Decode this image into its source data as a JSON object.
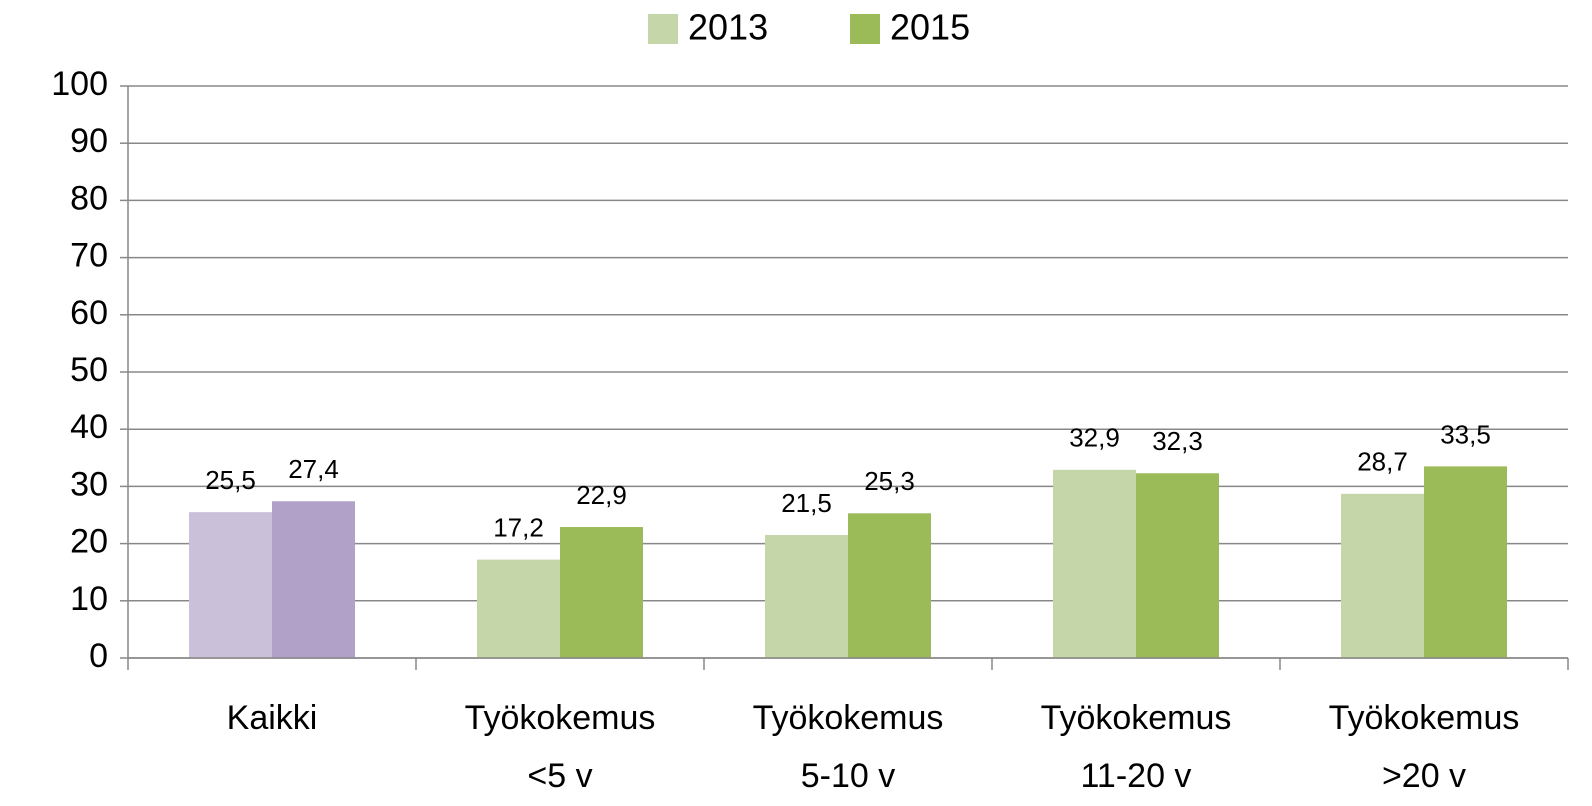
{
  "chart_data": {
    "type": "bar",
    "categories": [
      "Kaikki",
      "Työkokemus\n<5 v",
      "Työkokemus\n5-10 v",
      "Työkokemus\n11-20 v",
      "Työkokemus\n>20 v"
    ],
    "series": [
      {
        "name": "2013",
        "color": "#c5d6a8",
        "colors": [
          "#cbc0da",
          "#c5d6a8",
          "#c5d6a8",
          "#c5d6a8",
          "#c5d6a8"
        ],
        "values": [
          25.5,
          17.2,
          21.5,
          32.9,
          28.7
        ],
        "value_labels": [
          "25,5",
          "17,2",
          "21,5",
          "32,9",
          "28,7"
        ]
      },
      {
        "name": "2015",
        "color": "#9bbb59",
        "colors": [
          "#b1a0c7",
          "#9bbb59",
          "#9bbb59",
          "#9bbb59",
          "#9bbb59"
        ],
        "values": [
          27.4,
          22.9,
          25.3,
          32.3,
          33.5
        ],
        "value_labels": [
          "27,4",
          "22,9",
          "25,3",
          "32,3",
          "33,5"
        ]
      }
    ],
    "ylim": [
      0,
      100
    ],
    "yticks": [
      0,
      10,
      20,
      30,
      40,
      50,
      60,
      70,
      80,
      90,
      100
    ],
    "grid": true,
    "legend": "top"
  }
}
